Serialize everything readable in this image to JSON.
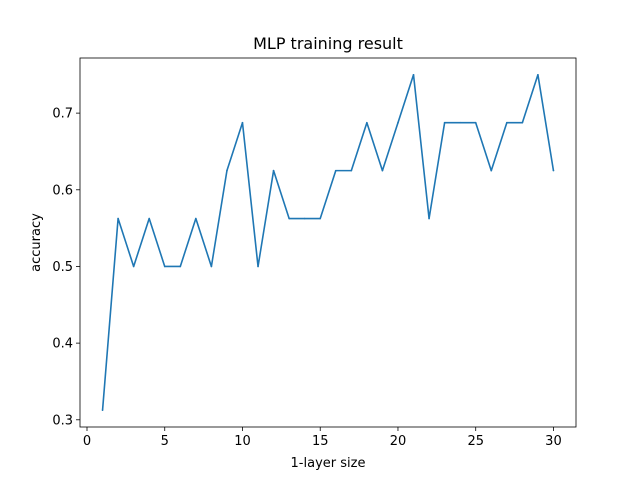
{
  "chart_data": {
    "type": "line",
    "title": "MLP training result",
    "xlabel": "1-layer size",
    "ylabel": "accuracy",
    "xlim": [
      -0.45,
      31.45
    ],
    "ylim": [
      0.2906,
      0.7719
    ],
    "xticks": [
      0,
      5,
      10,
      15,
      20,
      25,
      30
    ],
    "xtick_labels": [
      "0",
      "5",
      "10",
      "15",
      "20",
      "25",
      "30"
    ],
    "yticks": [
      0.3,
      0.4,
      0.5,
      0.6,
      0.7
    ],
    "ytick_labels": [
      "0.3",
      "0.4",
      "0.5",
      "0.6",
      "0.7"
    ],
    "grid": false,
    "series": [
      {
        "color": "#1f77b4",
        "x": [
          1,
          2,
          3,
          4,
          5,
          6,
          7,
          8,
          9,
          10,
          11,
          12,
          13,
          14,
          15,
          16,
          17,
          18,
          19,
          20,
          21,
          22,
          23,
          24,
          25,
          26,
          27,
          28,
          29,
          30
        ],
        "y": [
          0.3125,
          0.5625,
          0.5,
          0.5625,
          0.5,
          0.5,
          0.5625,
          0.5,
          0.625,
          0.6875,
          0.5,
          0.625,
          0.5625,
          0.5625,
          0.5625,
          0.625,
          0.625,
          0.6875,
          0.625,
          0.6875,
          0.75,
          0.5625,
          0.6875,
          0.6875,
          0.6875,
          0.625,
          0.6875,
          0.6875,
          0.75,
          0.625
        ]
      }
    ]
  }
}
